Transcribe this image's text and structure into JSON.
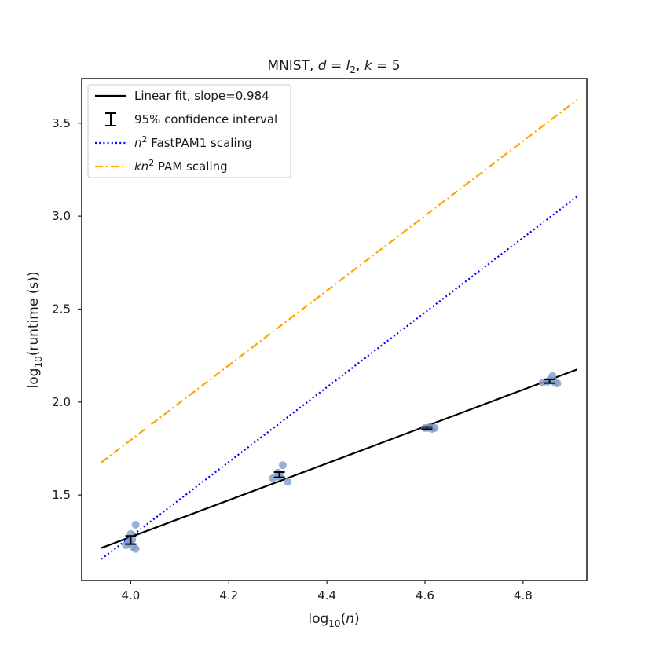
{
  "chart_data": {
    "type": "scatter",
    "title": "MNIST, d = l2, k = 5",
    "title_parts": {
      "prefix": "MNIST, ",
      "d": "d",
      "eq1": " = ",
      "l": "l",
      "l_sub": "2",
      "sep": ", ",
      "k": "k",
      "eq2": " = 5"
    },
    "xlabel": "log10(n)",
    "xlabel_parts": {
      "base": "log",
      "sub": "10",
      "open": "(",
      "var": "n",
      "close": ")"
    },
    "ylabel": "log10(runtime (s))",
    "ylabel_parts": {
      "base": "log",
      "sub": "10",
      "rest": "(runtime (s))"
    },
    "xlim": [
      3.9,
      4.93
    ],
    "ylim": [
      1.04,
      3.74
    ],
    "x_ticks": [
      4.0,
      4.2,
      4.4,
      4.6,
      4.8
    ],
    "x_tick_labels": [
      "4.0",
      "4.2",
      "4.4",
      "4.6",
      "4.8"
    ],
    "y_ticks": [
      1.5,
      2.0,
      2.5,
      3.0,
      3.5
    ],
    "y_tick_labels": [
      "1.5",
      "2.0",
      "2.5",
      "3.0",
      "3.5"
    ],
    "grid": false,
    "legend_position": "top-left",
    "legend": [
      {
        "label": "Linear fit, slope=0.984",
        "style": "solid",
        "color": "#000000",
        "math": ""
      },
      {
        "label": "95% confidence interval",
        "style": "errorbar",
        "color": "#000000",
        "math": ""
      },
      {
        "label": "FastPAM1 scaling",
        "style": "dotted",
        "color": "#0000ff",
        "math": "n",
        "sup": "2"
      },
      {
        "label": "PAM scaling",
        "style": "dashdot",
        "color": "#ffa500",
        "math": "kn",
        "sup": "2"
      }
    ],
    "series": [
      {
        "name": "Linear fit, slope=0.984",
        "kind": "line",
        "color": "#000000",
        "style": "solid",
        "x": [
          3.94,
          4.91
        ],
        "y": [
          1.215,
          2.175
        ]
      },
      {
        "name": "n2 FastPAM1 scaling",
        "kind": "line",
        "color": "#0000ff",
        "style": "dotted",
        "x": [
          3.94,
          4.91
        ],
        "y": [
          1.155,
          3.105
        ]
      },
      {
        "name": "kn2 PAM scaling",
        "kind": "line",
        "color": "#ffa500",
        "style": "dashdot",
        "x": [
          3.94,
          4.91
        ],
        "y": [
          1.675,
          3.625
        ]
      },
      {
        "name": "",
        "kind": "points",
        "color": "#7f9ccb",
        "points": [
          [
            3.99,
            1.23
          ],
          [
            3.995,
            1.24
          ],
          [
            4.0,
            1.29
          ],
          [
            4.005,
            1.22
          ],
          [
            4.01,
            1.21
          ],
          [
            4.003,
            1.26
          ],
          [
            4.01,
            1.34
          ],
          [
            3.998,
            1.25
          ],
          [
            4.29,
            1.59
          ],
          [
            4.3,
            1.62
          ],
          [
            4.305,
            1.61
          ],
          [
            4.31,
            1.66
          ],
          [
            4.32,
            1.57
          ],
          [
            4.302,
            1.6
          ],
          [
            4.6,
            1.86
          ],
          [
            4.605,
            1.86
          ],
          [
            4.61,
            1.865
          ],
          [
            4.615,
            1.855
          ],
          [
            4.62,
            1.86
          ],
          [
            4.84,
            2.105
          ],
          [
            4.85,
            2.11
          ],
          [
            4.855,
            2.12
          ],
          [
            4.86,
            2.14
          ],
          [
            4.865,
            2.105
          ],
          [
            4.87,
            2.1
          ]
        ]
      },
      {
        "name": "95% confidence interval",
        "kind": "errorbar",
        "color": "#000000",
        "points": [
          [
            4.0,
            1.258,
            0.022
          ],
          [
            4.303,
            1.609,
            0.014
          ],
          [
            4.604,
            1.86,
            0.006
          ],
          [
            4.854,
            2.112,
            0.01
          ]
        ]
      }
    ]
  }
}
